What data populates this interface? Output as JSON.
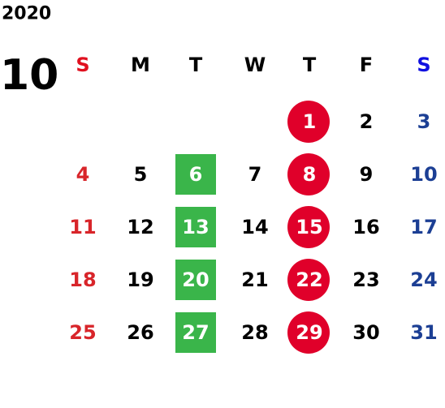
{
  "year": "2020",
  "month": "10",
  "weekdays": [
    "S",
    "M",
    "T",
    "W",
    "T",
    "F",
    "S"
  ],
  "weekday_colors": [
    "#e0101f",
    "#000000",
    "#000000",
    "#000000",
    "#000000",
    "#000000",
    "#1010e0"
  ],
  "day_colors": [
    "#d8252a",
    "#000000",
    "#000000",
    "#000000",
    "#000000",
    "#000000",
    "#1c3f94"
  ],
  "mark_colors": {
    "circle": "#e0002a",
    "square": "#3ab54a"
  },
  "weeks": [
    [
      null,
      null,
      null,
      null,
      {
        "day": 1,
        "mark": "circle"
      },
      2,
      3
    ],
    [
      4,
      5,
      {
        "day": 6,
        "mark": "square"
      },
      7,
      {
        "day": 8,
        "mark": "circle"
      },
      9,
      10
    ],
    [
      11,
      12,
      {
        "day": 13,
        "mark": "square"
      },
      14,
      {
        "day": 15,
        "mark": "circle"
      },
      16,
      17
    ],
    [
      18,
      19,
      {
        "day": 20,
        "mark": "square"
      },
      21,
      {
        "day": 22,
        "mark": "circle"
      },
      23,
      24
    ],
    [
      25,
      26,
      {
        "day": 27,
        "mark": "square"
      },
      28,
      {
        "day": 29,
        "mark": "circle"
      },
      30,
      31
    ]
  ]
}
